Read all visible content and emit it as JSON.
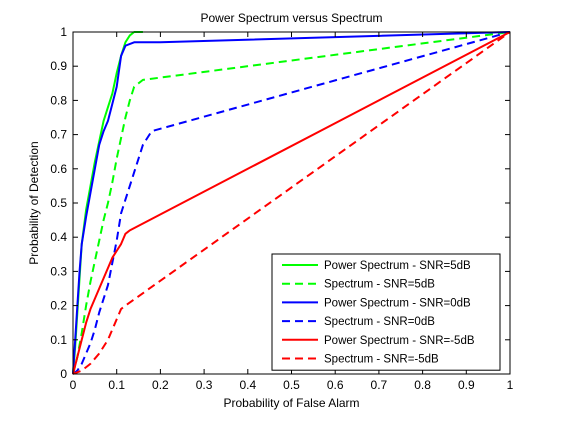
{
  "chart_data": {
    "type": "line",
    "title": "Power Spectrum versus Spectrum",
    "xlabel": "Probability of False Alarm",
    "ylabel": "Probability of Detection",
    "xlim": [
      0,
      1
    ],
    "ylim": [
      0,
      1
    ],
    "x_ticks": [
      "0",
      "0.1",
      "0.2",
      "0.3",
      "0.4",
      "0.5",
      "0.6",
      "0.7",
      "0.8",
      "0.9",
      "1"
    ],
    "y_ticks": [
      "0",
      "0.1",
      "0.2",
      "0.3",
      "0.4",
      "0.5",
      "0.6",
      "0.7",
      "0.8",
      "0.9",
      "1"
    ],
    "grid": false,
    "legend_position": "bottom-right",
    "series": [
      {
        "name": "Power Spectrum - SNR=5dB",
        "color": "#00ff00",
        "style": "solid",
        "x": [
          0,
          0.005,
          0.01,
          0.015,
          0.02,
          0.03,
          0.04,
          0.05,
          0.06,
          0.07,
          0.08,
          0.09,
          0.1,
          0.11,
          0.115,
          0.12,
          0.13,
          0.14,
          0.16
        ],
        "y": [
          0,
          0.08,
          0.18,
          0.28,
          0.38,
          0.48,
          0.55,
          0.62,
          0.68,
          0.74,
          0.78,
          0.82,
          0.88,
          0.93,
          0.95,
          0.97,
          0.99,
          1.0,
          1.0
        ]
      },
      {
        "name": "Spectrum - SNR=5dB",
        "color": "#00ff00",
        "style": "dashed",
        "x": [
          0,
          0.01,
          0.02,
          0.03,
          0.04,
          0.05,
          0.06,
          0.07,
          0.08,
          0.09,
          0.1,
          0.11,
          0.12,
          0.13,
          0.14,
          0.16,
          1.0
        ],
        "y": [
          0,
          0.05,
          0.12,
          0.2,
          0.27,
          0.33,
          0.39,
          0.45,
          0.5,
          0.56,
          0.63,
          0.69,
          0.75,
          0.8,
          0.84,
          0.86,
          1.0
        ]
      },
      {
        "name": "Power Spectrum - SNR=0dB",
        "color": "#0000ff",
        "style": "solid",
        "x": [
          0,
          0.005,
          0.01,
          0.015,
          0.02,
          0.03,
          0.04,
          0.05,
          0.06,
          0.07,
          0.08,
          0.09,
          0.1,
          0.11,
          0.12,
          0.14,
          0.2,
          1.0
        ],
        "y": [
          0,
          0.1,
          0.2,
          0.3,
          0.38,
          0.46,
          0.53,
          0.6,
          0.67,
          0.71,
          0.74,
          0.79,
          0.84,
          0.93,
          0.96,
          0.97,
          0.97,
          1.0
        ]
      },
      {
        "name": "Spectrum - SNR=0dB",
        "color": "#0000ff",
        "style": "dashed",
        "x": [
          0,
          0.01,
          0.02,
          0.03,
          0.04,
          0.05,
          0.06,
          0.08,
          0.1,
          0.11,
          0.12,
          0.13,
          0.14,
          0.15,
          0.16,
          0.17,
          0.18,
          1.0
        ],
        "y": [
          0,
          0.01,
          0.03,
          0.06,
          0.09,
          0.13,
          0.18,
          0.26,
          0.39,
          0.47,
          0.51,
          0.55,
          0.59,
          0.63,
          0.67,
          0.69,
          0.71,
          1.0
        ]
      },
      {
        "name": "Power Spectrum - SNR=-5dB",
        "color": "#ff0000",
        "style": "solid",
        "x": [
          0,
          0.01,
          0.02,
          0.03,
          0.04,
          0.05,
          0.06,
          0.07,
          0.08,
          0.09,
          0.1,
          0.11,
          0.12,
          0.13,
          1.0
        ],
        "y": [
          0,
          0.05,
          0.1,
          0.15,
          0.19,
          0.22,
          0.25,
          0.28,
          0.31,
          0.34,
          0.36,
          0.38,
          0.41,
          0.42,
          1.0
        ]
      },
      {
        "name": "Spectrum - SNR=-5dB",
        "color": "#ff0000",
        "style": "dashed",
        "x": [
          0,
          0.02,
          0.04,
          0.06,
          0.08,
          0.1,
          0.11,
          0.12,
          1.0
        ],
        "y": [
          0,
          0.01,
          0.03,
          0.06,
          0.1,
          0.16,
          0.19,
          0.2,
          1.0
        ]
      }
    ]
  }
}
